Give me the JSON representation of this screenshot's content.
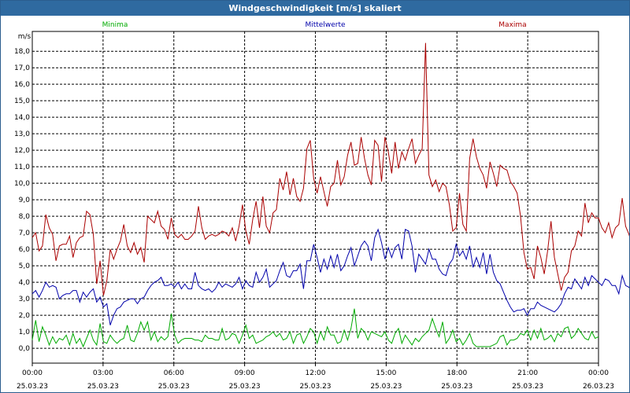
{
  "window": {
    "title": "Windgeschwindigkeit [m/s] skaliert"
  },
  "chart_data": {
    "type": "line",
    "title": "Windgeschwindigkeit [m/s] skaliert",
    "ylabel": "m/s",
    "ylim": [
      -0.9,
      19.2
    ],
    "yticks": [
      "0,0",
      "1,0",
      "2,0",
      "3,0",
      "4,0",
      "5,0",
      "6,0",
      "7,0",
      "8,0",
      "9,0",
      "10,0",
      "11,0",
      "12,0",
      "13,0",
      "14,0",
      "15,0",
      "16,0",
      "17,0",
      "18,0"
    ],
    "x_start": "25.03.23 00:00",
    "x_end": "26.03.23 00:00",
    "x_step_minutes": 10,
    "xticks": [
      {
        "time": "00:00",
        "date": "25.03.23"
      },
      {
        "time": "03:00",
        "date": "25.03.23"
      },
      {
        "time": "06:00",
        "date": "25.03.23"
      },
      {
        "time": "09:00",
        "date": "25.03.23"
      },
      {
        "time": "12:00",
        "date": "25.03.23"
      },
      {
        "time": "15:00",
        "date": "25.03.23"
      },
      {
        "time": "18:00",
        "date": "25.03.23"
      },
      {
        "time": "21:00",
        "date": "25.03.23"
      },
      {
        "time": "00:00",
        "date": "26.03.23"
      }
    ],
    "grid": true,
    "legend_position": "top",
    "series": [
      {
        "name": "Minima",
        "color": "#00aa00",
        "values": [
          0.5,
          1.7,
          0.4,
          1.3,
          0.8,
          0.2,
          0.7,
          0.3,
          0.6,
          0.5,
          0.8,
          0.2,
          0.9,
          0.3,
          0.6,
          0.1,
          0.6,
          1.1,
          0.5,
          0.2,
          1.5,
          0.4,
          0.3,
          0.8,
          0.5,
          0.3,
          0.5,
          0.6,
          1.4,
          0.5,
          0.4,
          0.9,
          1.6,
          1.1,
          1.6,
          0.5,
          1.0,
          0.4,
          0.7,
          0.5,
          0.7,
          2.1,
          0.8,
          0.3,
          0.5,
          0.6,
          0.6,
          0.6,
          0.5,
          0.5,
          0.4,
          0.8,
          0.6,
          0.6,
          0.5,
          0.5,
          1.2,
          0.5,
          0.6,
          0.9,
          0.8,
          0.3,
          0.8,
          1.4,
          0.6,
          0.8,
          0.3,
          0.4,
          0.5,
          0.7,
          0.8,
          1.0,
          0.7,
          0.9,
          0.5,
          0.6,
          1.0,
          0.3,
          0.8,
          0.9,
          0.3,
          0.7,
          1.2,
          1.0,
          0.3,
          1.0,
          0.5,
          1.3,
          0.8,
          0.8,
          0.3,
          0.4,
          1.1,
          0.5,
          1.2,
          2.4,
          0.6,
          1.2,
          1.0,
          0.5,
          1.0,
          0.9,
          0.8,
          0.7,
          1.0,
          0.5,
          0.3,
          0.9,
          1.2,
          0.3,
          0.8,
          0.5,
          0.2,
          0.6,
          0.4,
          0.7,
          0.9,
          1.1,
          1.8,
          1.2,
          0.7,
          1.6,
          0.3,
          0.6,
          1.1,
          0.4,
          0.6,
          0.2,
          0.5,
          0.9,
          0.3,
          0.1,
          0.1,
          0.1,
          0.1,
          0.1,
          0.2,
          0.3,
          0.7,
          0.8,
          0.2,
          0.5,
          0.5,
          0.6,
          0.9,
          0.8,
          1.1,
          0.5,
          1.1,
          0.6,
          1.2,
          0.5,
          0.6,
          0.8,
          0.4,
          0.9,
          0.7,
          1.2,
          1.3,
          0.6,
          0.8,
          1.2,
          0.9,
          0.6,
          0.5,
          1.0,
          0.6,
          0.7
        ]
      },
      {
        "name": "Mittelwerte",
        "color": "#0000aa",
        "values": [
          3.3,
          3.5,
          3.1,
          3.5,
          4.0,
          3.7,
          3.8,
          3.7,
          3.0,
          3.2,
          3.3,
          3.3,
          3.5,
          3.5,
          2.8,
          3.4,
          3.1,
          3.4,
          3.6,
          2.8,
          3.1,
          2.5,
          2.7,
          1.4,
          2.0,
          2.4,
          2.5,
          2.8,
          2.9,
          3.0,
          3.0,
          2.7,
          3.0,
          3.1,
          3.5,
          3.8,
          4.0,
          4.1,
          4.3,
          3.8,
          3.8,
          3.9,
          3.7,
          4.0,
          3.6,
          3.9,
          3.6,
          3.6,
          4.6,
          3.8,
          3.6,
          3.5,
          3.6,
          3.4,
          3.6,
          4.0,
          3.7,
          3.9,
          3.8,
          3.7,
          3.9,
          4.3,
          3.6,
          4.1,
          3.8,
          3.7,
          4.6,
          4.0,
          4.3,
          4.8,
          3.7,
          3.9,
          4.1,
          4.7,
          5.2,
          4.4,
          4.3,
          4.7,
          4.7,
          5.1,
          3.6,
          5.3,
          5.3,
          6.3,
          5.5,
          4.6,
          5.4,
          4.8,
          5.6,
          4.9,
          5.7,
          4.7,
          5.0,
          5.6,
          6.1,
          5.0,
          5.6,
          6.2,
          6.5,
          6.2,
          5.3,
          6.7,
          7.2,
          6.4,
          5.4,
          6.1,
          5.5,
          6.1,
          6.3,
          5.4,
          7.2,
          7.1,
          6.2,
          4.6,
          5.7,
          5.4,
          5.1,
          6.0,
          5.4,
          5.4,
          4.8,
          4.5,
          4.4,
          5.1,
          5.4,
          6.3,
          5.6,
          5.9,
          5.4,
          6.2,
          4.9,
          5.5,
          4.9,
          5.8,
          4.5,
          5.7,
          4.6,
          4.1,
          3.9,
          3.4,
          2.9,
          2.5,
          2.2,
          2.3,
          2.3,
          2.4,
          2.0,
          2.4,
          2.4,
          2.8,
          2.6,
          2.5,
          2.4,
          2.3,
          2.2,
          2.4,
          2.7,
          3.3,
          3.7,
          3.6,
          4.2,
          3.9,
          3.6,
          4.3,
          3.8,
          4.4,
          4.2,
          4.0,
          3.8,
          4.2,
          4.1,
          3.8,
          3.8,
          3.3,
          4.4,
          3.8,
          3.7,
          3.3,
          3.4,
          3.4
        ]
      },
      {
        "name": "Maxima",
        "color": "#aa0000",
        "values": [
          6.7,
          7.0,
          5.9,
          6.2,
          8.1,
          7.3,
          6.9,
          5.3,
          6.2,
          6.3,
          6.3,
          6.8,
          5.5,
          6.4,
          6.7,
          6.8,
          8.3,
          8.1,
          6.9,
          3.9,
          5.3,
          3.2,
          4.1,
          6.0,
          5.4,
          6.0,
          6.5,
          7.5,
          6.2,
          5.8,
          6.4,
          5.7,
          6.1,
          5.2,
          8.0,
          7.8,
          7.6,
          8.3,
          7.4,
          7.2,
          6.6,
          7.9,
          6.9,
          6.7,
          6.9,
          6.6,
          6.6,
          6.8,
          7.1,
          8.6,
          7.3,
          6.6,
          6.8,
          6.9,
          6.8,
          6.9,
          7.1,
          7.0,
          6.8,
          7.3,
          6.5,
          7.4,
          8.7,
          7.1,
          6.3,
          7.8,
          8.9,
          7.3,
          9.2,
          7.4,
          7.0,
          8.2,
          8.4,
          10.3,
          9.6,
          10.7,
          9.3,
          10.3,
          9.2,
          8.9,
          9.7,
          12.1,
          12.6,
          10.3,
          9.4,
          10.4,
          9.5,
          8.6,
          9.8,
          10.0,
          11.4,
          9.9,
          10.4,
          11.7,
          12.5,
          11.1,
          11.2,
          12.8,
          11.5,
          10.5,
          9.9,
          12.6,
          12.3,
          10.1,
          12.8,
          11.9,
          10.6,
          12.5,
          10.9,
          11.9,
          11.4,
          12.1,
          12.7,
          11.2,
          11.7,
          12.1,
          18.5,
          10.5,
          9.8,
          10.2,
          9.5,
          10.0,
          9.8,
          8.7,
          7.1,
          7.3,
          9.4,
          7.5,
          7.1,
          11.5,
          12.7,
          11.6,
          10.9,
          10.5,
          9.7,
          11.3,
          10.6,
          9.8,
          11.1,
          10.9,
          10.8,
          10.1,
          9.8,
          9.4,
          8.0,
          5.8,
          4.8,
          4.9,
          4.2,
          6.2,
          5.5,
          4.5,
          5.9,
          7.7,
          5.5,
          4.5,
          3.5,
          4.3,
          4.6,
          5.9,
          6.2,
          7.1,
          6.8,
          8.8,
          7.6,
          8.2,
          7.9,
          7.9,
          7.3,
          7.0,
          7.6,
          6.7,
          7.3,
          7.5,
          9.1,
          7.4,
          6.9,
          6.2,
          5.9,
          6.1,
          6.0
        ]
      }
    ]
  }
}
